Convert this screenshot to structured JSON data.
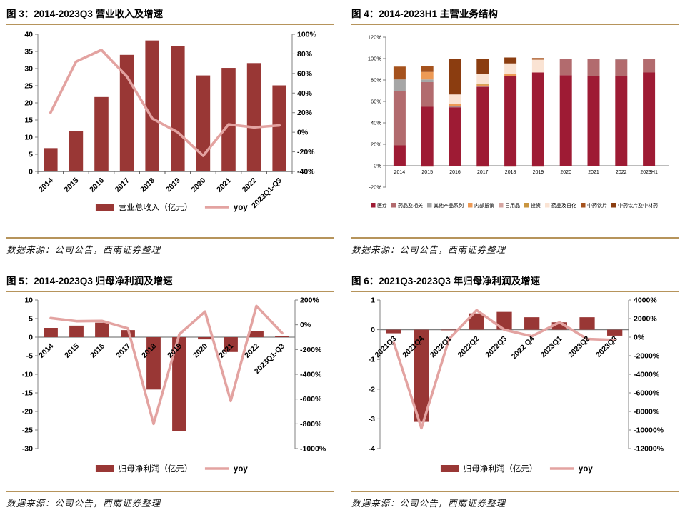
{
  "colors": {
    "gold_rule": "#B6945B",
    "axis_line": "#808080",
    "baseline_dark": "#595959",
    "combo_bar": "#993735",
    "yoy_line": "#E3A3A1",
    "stack_medical": "#9E1B34"
  },
  "figures": [
    {
      "title": "图 3：2014-2023Q3 营业收入及增速",
      "source": "数据来源：公司公告，西南证券整理"
    },
    {
      "title": "图 4：2014-2023H1 主营业务结构",
      "source": "数据来源：公司公告，西南证券整理"
    },
    {
      "title": "图 5：2014-2023Q3 归母净利润及增速",
      "source": "数据来源：公司公告，西南证券整理"
    },
    {
      "title": "图 6：2021Q3-2023Q3 年归母净利润及增速",
      "source": "数据来源：公司公告，西南证券整理"
    }
  ],
  "chart_data": [
    {
      "type": "bar",
      "subtype": "combo_bar_line_dual_axis",
      "title": "图 3：2014-2023Q3 营业收入及增速",
      "categories": [
        "2014",
        "2015",
        "2016",
        "2017",
        "2018",
        "2019",
        "2020",
        "2021",
        "2022",
        "2023Q1-Q3"
      ],
      "series": [
        {
          "name": "营业总收入（亿元）",
          "type": "bar",
          "axis": "left",
          "color": "#993735",
          "values": [
            6.8,
            11.7,
            21.7,
            34.0,
            38.2,
            36.6,
            28.0,
            30.2,
            31.6,
            25.1
          ]
        },
        {
          "name": "yoy",
          "type": "line",
          "axis": "right",
          "color": "#E3A3A1",
          "values": [
            20,
            72,
            84,
            57,
            14,
            0,
            -24,
            8,
            5,
            7
          ]
        }
      ],
      "left_axis": {
        "min": 0,
        "max": 40,
        "step": 5,
        "suffix": ""
      },
      "right_axis": {
        "min": -40,
        "max": 100,
        "step": 20,
        "suffix": "%"
      },
      "grid": false,
      "legend_position": "bottom"
    },
    {
      "type": "bar",
      "subtype": "stacked_percent",
      "title": "图 4：2014-2023H1 主营业务结构",
      "categories": [
        "2014",
        "2015",
        "2016",
        "2017",
        "2018",
        "2019",
        "2020",
        "2021",
        "2022",
        "2023H1"
      ],
      "y_axis": {
        "min": -20,
        "max": 120,
        "step": 20,
        "suffix": "%"
      },
      "series": [
        {
          "name": "医疗",
          "color": "#9E1B34",
          "values": [
            19,
            55,
            54.5,
            73.5,
            83.5,
            87,
            84.5,
            84,
            84,
            87
          ]
        },
        {
          "name": "药品及相关",
          "color": "#B26B6E",
          "values": [
            51,
            23,
            0.5,
            0.5,
            0,
            0,
            15,
            15.5,
            15,
            12.5
          ]
        },
        {
          "name": "其他产品系列",
          "color": "#A6A6A6",
          "values": [
            10.5,
            2.5,
            0.5,
            0.5,
            0.5,
            0,
            0,
            0,
            0.5,
            0
          ]
        },
        {
          "name": "内部抵销",
          "color": "#ED9A55",
          "values": [
            0,
            7,
            2,
            1,
            1.5,
            0,
            0,
            0,
            0,
            0
          ]
        },
        {
          "name": "日用品",
          "color": "#D5A5A1",
          "values": [
            0,
            -1,
            0,
            -1,
            -1,
            -1,
            0,
            0,
            0,
            0
          ]
        },
        {
          "name": "投资",
          "color": "#C9953F",
          "values": [
            0,
            0,
            0.5,
            0.5,
            0,
            0,
            0,
            0,
            0,
            0
          ]
        },
        {
          "name": "药品及日化",
          "color": "#FAE3D3",
          "values": [
            0,
            0,
            8.5,
            10,
            10,
            12,
            0,
            0,
            0,
            0
          ]
        },
        {
          "name": "中药饮片",
          "color": "#A5521D",
          "values": [
            12,
            5.5,
            0,
            0,
            0,
            1.5,
            0,
            0,
            0,
            0
          ]
        },
        {
          "name": "中药饮片及中材药",
          "color": "#8B3D10",
          "values": [
            0,
            0,
            33.5,
            13.5,
            5.5,
            0,
            0,
            0,
            0,
            0
          ]
        }
      ],
      "grid": false,
      "legend_position": "bottom"
    },
    {
      "type": "bar",
      "subtype": "combo_bar_line_dual_axis",
      "title": "图 5：2014-2023Q3 归母净利润及增速",
      "categories": [
        "2014",
        "2015",
        "2016",
        "2017",
        "2018",
        "2019",
        "2020",
        "2021",
        "2022",
        "2023Q1-Q3"
      ],
      "series": [
        {
          "name": "归母净利润（亿元）",
          "type": "bar",
          "axis": "left",
          "color": "#993735",
          "values": [
            2.5,
            3.1,
            3.9,
            1.9,
            -14.1,
            -25.2,
            -0.6,
            -4.0,
            1.6,
            0.2
          ]
        },
        {
          "name": "yoy",
          "type": "line",
          "axis": "right",
          "color": "#E3A3A1",
          "values": [
            54,
            29,
            31,
            -29,
            -800,
            -77,
            106,
            -615,
            152,
            -67
          ]
        }
      ],
      "left_axis": {
        "min": -30,
        "max": 10,
        "step": 5,
        "suffix": ""
      },
      "right_axis": {
        "min": -1000,
        "max": 200,
        "step": 200,
        "suffix": "%"
      },
      "grid": false,
      "legend_position": "bottom"
    },
    {
      "type": "bar",
      "subtype": "combo_bar_line_dual_axis",
      "title": "图 6：2021Q3-2023Q3 年归母净利润及增速",
      "categories": [
        "2021Q3",
        "2021Q4",
        "2022Q1",
        "2022Q2",
        "2022Q3",
        "2022 Q4",
        "2023Q1",
        "2023Q2",
        "2023Q3"
      ],
      "series": [
        {
          "name": "归母净利润（亿元）",
          "type": "bar",
          "axis": "left",
          "color": "#993735",
          "values": [
            -0.12,
            -3.1,
            -0.02,
            0.55,
            0.6,
            0.42,
            0.25,
            0.42,
            -0.2
          ]
        },
        {
          "name": "yoy",
          "type": "line",
          "axis": "right",
          "color": "#E3A3A1",
          "values": [
            -600,
            -9800,
            -200,
            2900,
            800,
            100,
            1600,
            -200,
            -300
          ]
        }
      ],
      "left_axis": {
        "min": -4,
        "max": 1,
        "step": 1,
        "suffix": ""
      },
      "right_axis": {
        "min": -12000,
        "max": 4000,
        "step": 2000,
        "suffix": "%"
      },
      "grid": false,
      "legend_position": "bottom"
    }
  ]
}
